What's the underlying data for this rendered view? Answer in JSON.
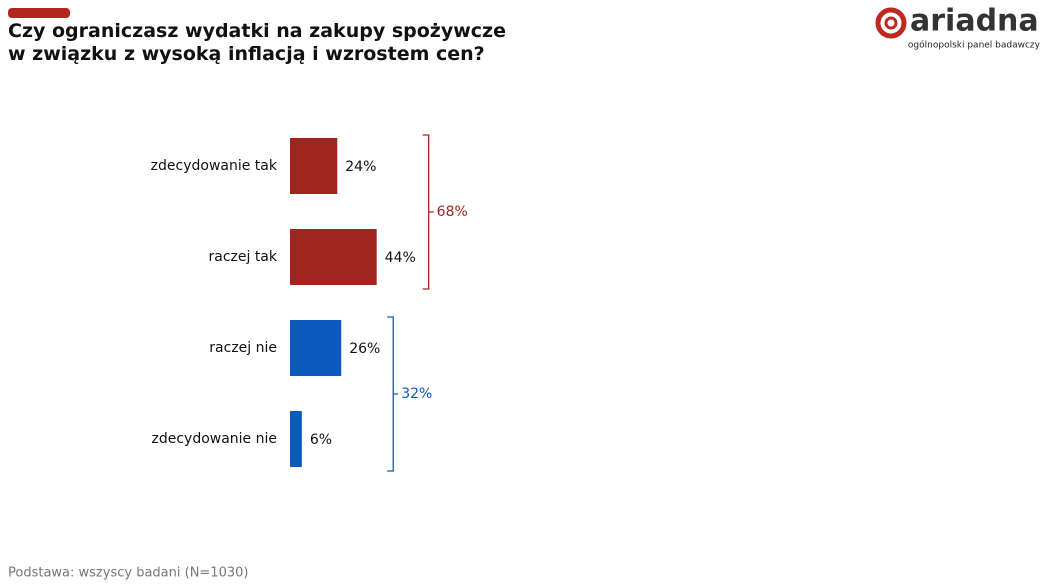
{
  "chart_data": {
    "type": "bar",
    "title": "Czy ograniczasz wydatki na zakupy spożywcze w związku z wysoką inflacją i wzrostem cen?",
    "categories": [
      "zdecydowanie tak",
      "raczej tak",
      "raczej nie",
      "zdecydowanie nie"
    ],
    "values": [
      24,
      44,
      26,
      6
    ],
    "value_labels": [
      "24%",
      "44%",
      "26%",
      "6%"
    ],
    "colors": [
      "#a0251f",
      "#a0251f",
      "#0a5bbd",
      "#0a5bbd"
    ],
    "groups": [
      {
        "value": 68,
        "label": "68%",
        "color": "#a0251f",
        "categories": [
          "zdecydowanie tak",
          "raczej tak"
        ]
      },
      {
        "value": 32,
        "label": "32%",
        "color": "#0a5bbd",
        "categories": [
          "raczej nie",
          "zdecydowanie nie"
        ]
      }
    ]
  },
  "footnote": "Podstawa: wszyscy badani (N=1030)",
  "logo": {
    "name": "ariadna",
    "tagline": "ogólnopolski panel badawczy"
  }
}
